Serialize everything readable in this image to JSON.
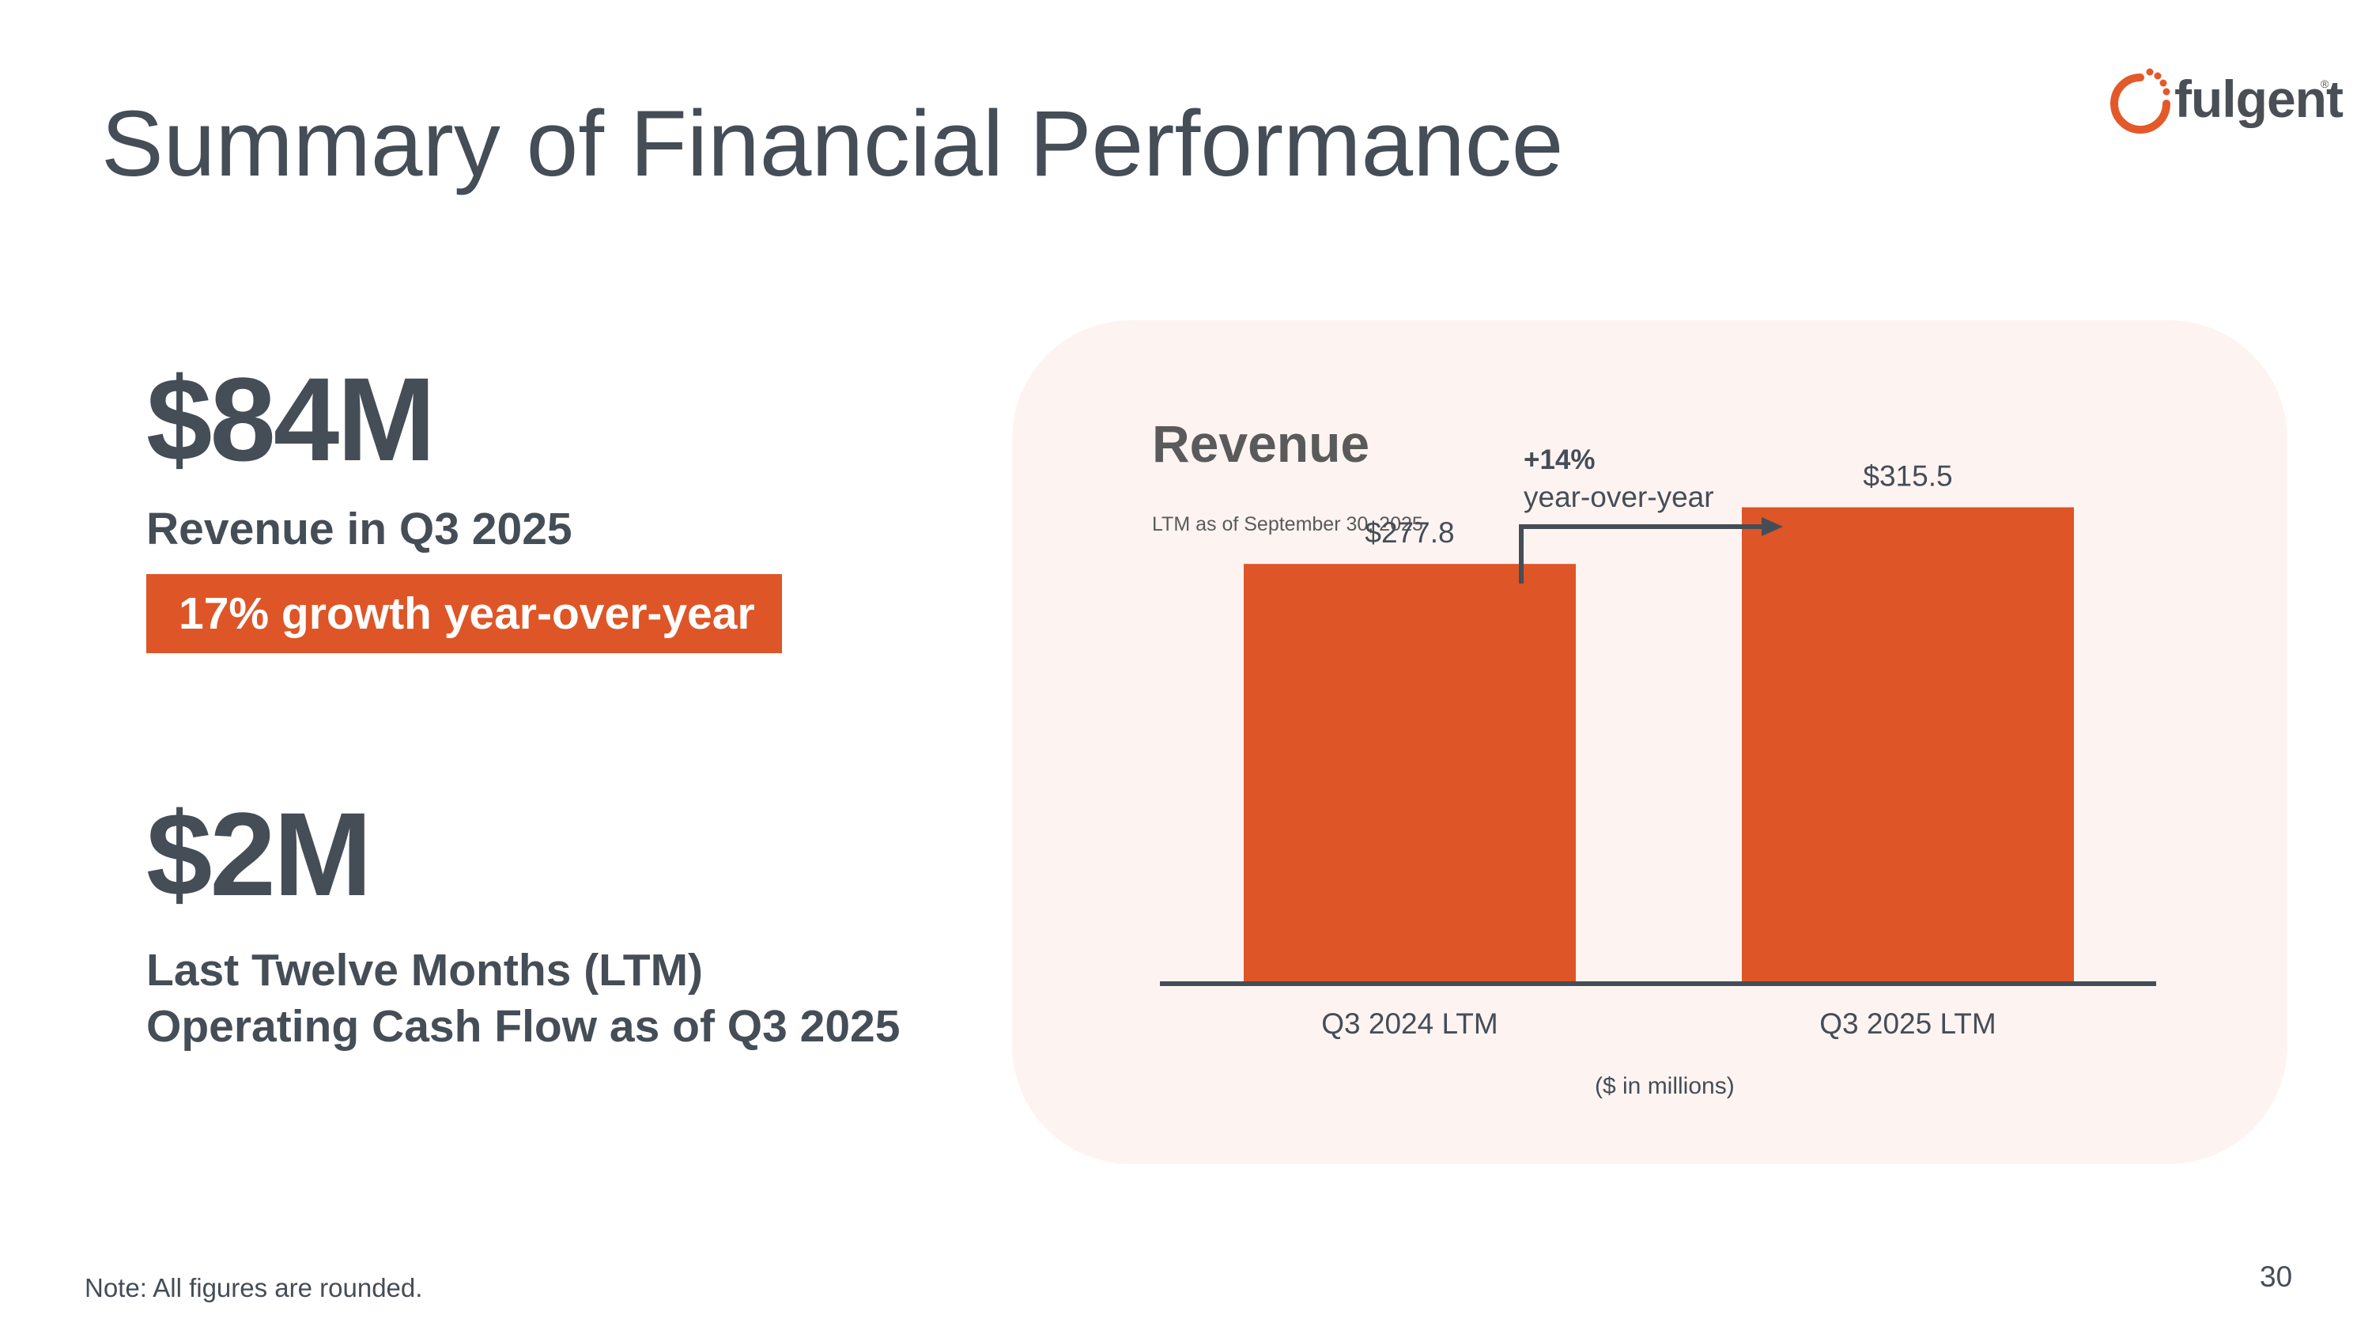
{
  "slide": {
    "title": "Summary of Financial Performance",
    "page_number": "30",
    "note": "Note: All figures are rounded."
  },
  "logo": {
    "text": "fulgent",
    "mark": "®",
    "color": "#e4592a"
  },
  "metrics": [
    {
      "value": "$84M",
      "label": "Revenue in Q3 2025",
      "highlight": "17% growth year-over-year"
    },
    {
      "value": "$2M",
      "label_line1": "Last Twelve Months (LTM)",
      "label_line2": "Operating Cash Flow as of Q3 2025"
    }
  ],
  "colors": {
    "accent": "#de5527",
    "text": "#454d57",
    "panel": "#fdf4f1"
  },
  "chart_data": {
    "type": "bar",
    "title": "Revenue",
    "subtitle": "LTM as of September 30, 2025",
    "categories": [
      "Q3 2024 LTM",
      "Q3 2025 LTM"
    ],
    "values": [
      277.8,
      315.5
    ],
    "value_labels": [
      "$277.8",
      "$315.5"
    ],
    "xlabel": "($ in millions)",
    "ylabel": "",
    "ylim": [
      0,
      350
    ],
    "annotation": {
      "change": "+14%",
      "label": "year-over-year"
    },
    "grid": false
  }
}
